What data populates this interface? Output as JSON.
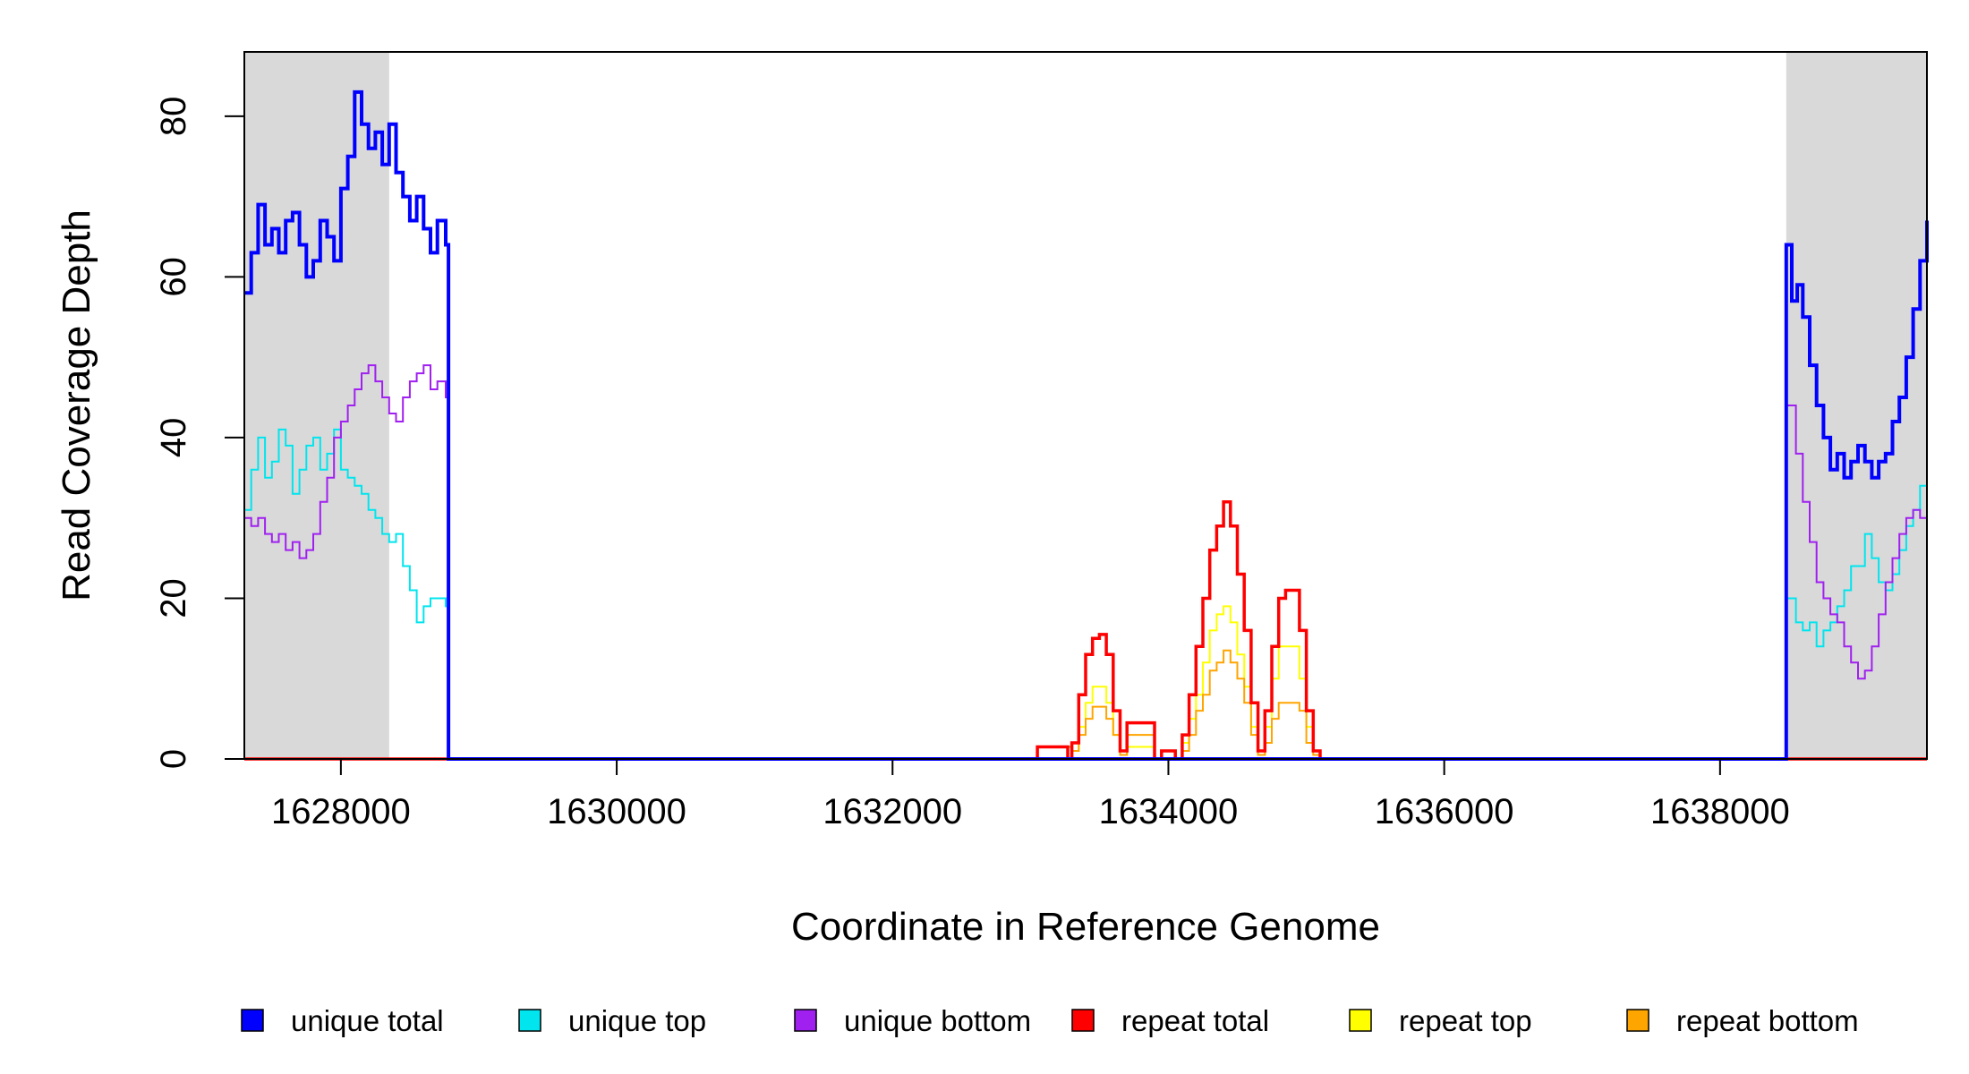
{
  "chart_data": {
    "type": "line",
    "title": "",
    "xlabel": "Coordinate in Reference Genome",
    "ylabel": "Read Coverage Depth",
    "xlim": [
      1627300,
      1639500
    ],
    "ylim": [
      0,
      88
    ],
    "x_ticks": [
      1628000,
      1630000,
      1632000,
      1634000,
      1636000,
      1638000
    ],
    "y_ticks": [
      0,
      20,
      40,
      60,
      80
    ],
    "shaded_regions": [
      {
        "x0": 1627300,
        "x1": 1628350
      },
      {
        "x0": 1638480,
        "x1": 1639500
      }
    ],
    "legend_position": "bottom",
    "series": [
      {
        "name": "unique total",
        "color": "#0000ff",
        "points": [
          [
            1627300,
            58
          ],
          [
            1627350,
            63
          ],
          [
            1627400,
            69
          ],
          [
            1627450,
            64
          ],
          [
            1627500,
            66
          ],
          [
            1627550,
            63
          ],
          [
            1627600,
            67
          ],
          [
            1627650,
            68
          ],
          [
            1627700,
            64
          ],
          [
            1627750,
            60
          ],
          [
            1627800,
            62
          ],
          [
            1627850,
            67
          ],
          [
            1627900,
            65
          ],
          [
            1627950,
            62
          ],
          [
            1628000,
            71
          ],
          [
            1628050,
            75
          ],
          [
            1628100,
            83
          ],
          [
            1628150,
            79
          ],
          [
            1628200,
            76
          ],
          [
            1628250,
            78
          ],
          [
            1628300,
            74
          ],
          [
            1628350,
            79
          ],
          [
            1628400,
            73
          ],
          [
            1628450,
            70
          ],
          [
            1628500,
            67
          ],
          [
            1628550,
            70
          ],
          [
            1628600,
            66
          ],
          [
            1628650,
            63
          ],
          [
            1628700,
            67
          ],
          [
            1628760,
            64
          ],
          [
            1628780,
            0
          ],
          [
            1638470,
            0
          ],
          [
            1638480,
            64
          ],
          [
            1638520,
            57
          ],
          [
            1638560,
            59
          ],
          [
            1638600,
            55
          ],
          [
            1638650,
            49
          ],
          [
            1638700,
            44
          ],
          [
            1638750,
            40
          ],
          [
            1638800,
            36
          ],
          [
            1638850,
            38
          ],
          [
            1638900,
            35
          ],
          [
            1638950,
            37
          ],
          [
            1639000,
            39
          ],
          [
            1639050,
            37
          ],
          [
            1639100,
            35
          ],
          [
            1639150,
            37
          ],
          [
            1639200,
            38
          ],
          [
            1639250,
            42
          ],
          [
            1639300,
            45
          ],
          [
            1639350,
            50
          ],
          [
            1639400,
            56
          ],
          [
            1639450,
            62
          ],
          [
            1639500,
            67
          ]
        ]
      },
      {
        "name": "unique top",
        "color": "#00e5ee",
        "points": [
          [
            1627300,
            31
          ],
          [
            1627350,
            36
          ],
          [
            1627400,
            40
          ],
          [
            1627450,
            35
          ],
          [
            1627500,
            37
          ],
          [
            1627550,
            41
          ],
          [
            1627600,
            39
          ],
          [
            1627650,
            33
          ],
          [
            1627700,
            36
          ],
          [
            1627750,
            39
          ],
          [
            1627800,
            40
          ],
          [
            1627850,
            36
          ],
          [
            1627900,
            38
          ],
          [
            1627950,
            41
          ],
          [
            1628000,
            36
          ],
          [
            1628050,
            35
          ],
          [
            1628100,
            34
          ],
          [
            1628150,
            33
          ],
          [
            1628200,
            31
          ],
          [
            1628250,
            30
          ],
          [
            1628300,
            28
          ],
          [
            1628350,
            27
          ],
          [
            1628400,
            28
          ],
          [
            1628450,
            24
          ],
          [
            1628500,
            21
          ],
          [
            1628550,
            17
          ],
          [
            1628600,
            19
          ],
          [
            1628650,
            20
          ],
          [
            1628700,
            20
          ],
          [
            1628760,
            19
          ],
          [
            1628780,
            0
          ],
          [
            1638470,
            0
          ],
          [
            1638480,
            20
          ],
          [
            1638550,
            17
          ],
          [
            1638600,
            16
          ],
          [
            1638650,
            17
          ],
          [
            1638700,
            14
          ],
          [
            1638750,
            16
          ],
          [
            1638800,
            17
          ],
          [
            1638850,
            19
          ],
          [
            1638900,
            21
          ],
          [
            1638950,
            24
          ],
          [
            1639000,
            24
          ],
          [
            1639050,
            28
          ],
          [
            1639100,
            25
          ],
          [
            1639150,
            22
          ],
          [
            1639200,
            21
          ],
          [
            1639250,
            23
          ],
          [
            1639300,
            26
          ],
          [
            1639350,
            29
          ],
          [
            1639400,
            31
          ],
          [
            1639450,
            34
          ],
          [
            1639500,
            36
          ]
        ]
      },
      {
        "name": "unique bottom",
        "color": "#a020f0",
        "points": [
          [
            1627300,
            30
          ],
          [
            1627350,
            29
          ],
          [
            1627400,
            30
          ],
          [
            1627450,
            28
          ],
          [
            1627500,
            27
          ],
          [
            1627550,
            28
          ],
          [
            1627600,
            26
          ],
          [
            1627650,
            27
          ],
          [
            1627700,
            25
          ],
          [
            1627750,
            26
          ],
          [
            1627800,
            28
          ],
          [
            1627850,
            32
          ],
          [
            1627900,
            35
          ],
          [
            1627950,
            40
          ],
          [
            1628000,
            42
          ],
          [
            1628050,
            44
          ],
          [
            1628100,
            46
          ],
          [
            1628150,
            48
          ],
          [
            1628200,
            49
          ],
          [
            1628250,
            47
          ],
          [
            1628300,
            45
          ],
          [
            1628350,
            43
          ],
          [
            1628400,
            42
          ],
          [
            1628450,
            45
          ],
          [
            1628500,
            47
          ],
          [
            1628550,
            48
          ],
          [
            1628600,
            49
          ],
          [
            1628650,
            46
          ],
          [
            1628700,
            47
          ],
          [
            1628760,
            45
          ],
          [
            1628780,
            0
          ],
          [
            1638470,
            0
          ],
          [
            1638480,
            44
          ],
          [
            1638550,
            38
          ],
          [
            1638600,
            32
          ],
          [
            1638650,
            27
          ],
          [
            1638700,
            22
          ],
          [
            1638750,
            20
          ],
          [
            1638800,
            18
          ],
          [
            1638850,
            17
          ],
          [
            1638900,
            14
          ],
          [
            1638950,
            12
          ],
          [
            1639000,
            10
          ],
          [
            1639050,
            11
          ],
          [
            1639100,
            14
          ],
          [
            1639150,
            18
          ],
          [
            1639200,
            22
          ],
          [
            1639250,
            25
          ],
          [
            1639300,
            28
          ],
          [
            1639350,
            30
          ],
          [
            1639400,
            31
          ],
          [
            1639450,
            30
          ],
          [
            1639500,
            30
          ]
        ]
      },
      {
        "name": "repeat total",
        "color": "#ff0000",
        "points": [
          [
            1627300,
            0
          ],
          [
            1633000,
            0
          ],
          [
            1633050,
            1.5
          ],
          [
            1633250,
            1.5
          ],
          [
            1633270,
            0
          ],
          [
            1633300,
            2
          ],
          [
            1633350,
            8
          ],
          [
            1633400,
            13
          ],
          [
            1633450,
            15
          ],
          [
            1633500,
            15.5
          ],
          [
            1633550,
            13
          ],
          [
            1633600,
            6
          ],
          [
            1633650,
            1
          ],
          [
            1633700,
            4.5
          ],
          [
            1633750,
            4.5
          ],
          [
            1633800,
            4.5
          ],
          [
            1633850,
            4.5
          ],
          [
            1633900,
            0
          ],
          [
            1633950,
            1
          ],
          [
            1634000,
            1
          ],
          [
            1634050,
            0
          ],
          [
            1634100,
            3
          ],
          [
            1634150,
            8
          ],
          [
            1634200,
            14
          ],
          [
            1634250,
            20
          ],
          [
            1634300,
            26
          ],
          [
            1634350,
            29
          ],
          [
            1634400,
            32
          ],
          [
            1634450,
            29
          ],
          [
            1634500,
            23
          ],
          [
            1634550,
            16
          ],
          [
            1634600,
            7
          ],
          [
            1634650,
            1
          ],
          [
            1634700,
            6
          ],
          [
            1634750,
            14
          ],
          [
            1634800,
            20
          ],
          [
            1634850,
            21
          ],
          [
            1634900,
            21
          ],
          [
            1634950,
            16
          ],
          [
            1635000,
            6
          ],
          [
            1635050,
            1
          ],
          [
            1635100,
            0
          ],
          [
            1639500,
            0
          ]
        ]
      },
      {
        "name": "repeat top",
        "color": "#ffff00",
        "points": [
          [
            1627300,
            0
          ],
          [
            1633250,
            0
          ],
          [
            1633300,
            1
          ],
          [
            1633350,
            4
          ],
          [
            1633400,
            7
          ],
          [
            1633450,
            9
          ],
          [
            1633500,
            9
          ],
          [
            1633550,
            7
          ],
          [
            1633600,
            3
          ],
          [
            1633650,
            0.5
          ],
          [
            1633700,
            1.5
          ],
          [
            1633750,
            1.5
          ],
          [
            1633800,
            1.5
          ],
          [
            1633850,
            1.5
          ],
          [
            1633900,
            0
          ],
          [
            1634100,
            2
          ],
          [
            1634150,
            5
          ],
          [
            1634200,
            8
          ],
          [
            1634250,
            12
          ],
          [
            1634300,
            16
          ],
          [
            1634350,
            18
          ],
          [
            1634400,
            19
          ],
          [
            1634450,
            17
          ],
          [
            1634500,
            13
          ],
          [
            1634550,
            9
          ],
          [
            1634600,
            4
          ],
          [
            1634650,
            0.5
          ],
          [
            1634700,
            4
          ],
          [
            1634750,
            10
          ],
          [
            1634800,
            14
          ],
          [
            1634850,
            14
          ],
          [
            1634900,
            14
          ],
          [
            1634950,
            10
          ],
          [
            1635000,
            4
          ],
          [
            1635050,
            1
          ],
          [
            1635100,
            0
          ],
          [
            1639500,
            0
          ]
        ]
      },
      {
        "name": "repeat bottom",
        "color": "#ffa500",
        "points": [
          [
            1627300,
            0
          ],
          [
            1633000,
            0
          ],
          [
            1633050,
            1.5
          ],
          [
            1633250,
            1.5
          ],
          [
            1633300,
            1
          ],
          [
            1633350,
            3
          ],
          [
            1633400,
            5
          ],
          [
            1633450,
            6.5
          ],
          [
            1633500,
            6.5
          ],
          [
            1633550,
            5
          ],
          [
            1633600,
            3
          ],
          [
            1633650,
            0.5
          ],
          [
            1633700,
            3
          ],
          [
            1633750,
            3
          ],
          [
            1633800,
            3
          ],
          [
            1633850,
            3
          ],
          [
            1633900,
            0
          ],
          [
            1634100,
            1
          ],
          [
            1634150,
            3
          ],
          [
            1634200,
            6
          ],
          [
            1634250,
            8
          ],
          [
            1634300,
            11
          ],
          [
            1634350,
            12
          ],
          [
            1634400,
            13.5
          ],
          [
            1634450,
            12
          ],
          [
            1634500,
            10
          ],
          [
            1634550,
            7
          ],
          [
            1634600,
            3
          ],
          [
            1634650,
            0.5
          ],
          [
            1634700,
            2
          ],
          [
            1634750,
            5
          ],
          [
            1634800,
            7
          ],
          [
            1634850,
            7
          ],
          [
            1634900,
            7
          ],
          [
            1634950,
            6
          ],
          [
            1635000,
            2
          ],
          [
            1635050,
            0.5
          ],
          [
            1635100,
            0
          ],
          [
            1639500,
            0
          ]
        ]
      }
    ],
    "legend": [
      {
        "label": "unique total",
        "color": "#0000ff"
      },
      {
        "label": "unique top",
        "color": "#00e5ee"
      },
      {
        "label": "unique bottom",
        "color": "#a020f0"
      },
      {
        "label": "repeat total",
        "color": "#ff0000"
      },
      {
        "label": "repeat top",
        "color": "#ffff00"
      },
      {
        "label": "repeat bottom",
        "color": "#ffa500"
      }
    ]
  }
}
